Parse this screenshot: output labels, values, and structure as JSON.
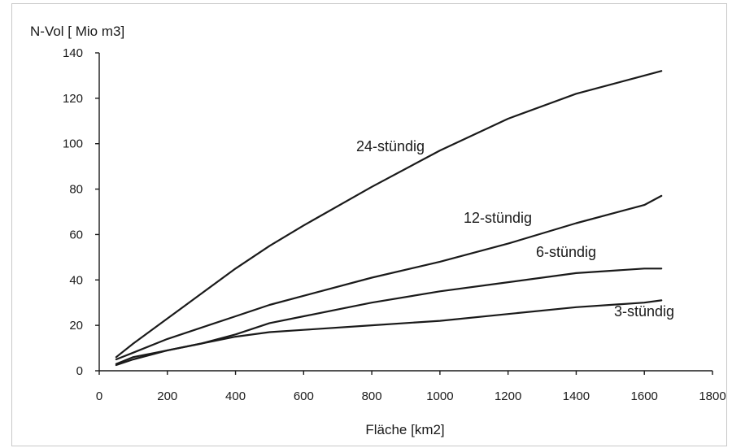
{
  "chart_data": {
    "type": "line",
    "title": "",
    "ylabel": "N-Vol [ Mio m3]",
    "xlabel": "Fläche [km2]",
    "xlim": [
      0,
      1800
    ],
    "ylim": [
      0,
      140
    ],
    "x_ticks": [
      "0",
      "200",
      "400",
      "600",
      "800",
      "1000",
      "1200",
      "1400",
      "1600",
      "1800"
    ],
    "y_ticks": [
      "0",
      "20",
      "40",
      "60",
      "80",
      "100",
      "120",
      "140"
    ],
    "grid": false,
    "legend": "none",
    "x": [
      50,
      100,
      200,
      300,
      400,
      500,
      600,
      800,
      1000,
      1200,
      1400,
      1600,
      1650
    ],
    "series": [
      {
        "name": "24-stündig",
        "values": [
          6,
          12,
          23,
          34,
          45,
          55,
          64,
          81,
          97,
          111,
          122,
          130,
          132
        ]
      },
      {
        "name": "12-stündig",
        "values": [
          5,
          8,
          14,
          19,
          24,
          29,
          33,
          41,
          48,
          56,
          65,
          73,
          77
        ]
      },
      {
        "name": "6-stündig",
        "values": [
          3,
          6,
          9,
          12,
          16,
          21,
          24,
          30,
          35,
          39,
          43,
          45,
          45
        ]
      },
      {
        "name": "3-stündig",
        "values": [
          2.5,
          5,
          9,
          12,
          15,
          17,
          18,
          20,
          22,
          25,
          28,
          30,
          31
        ]
      }
    ]
  }
}
